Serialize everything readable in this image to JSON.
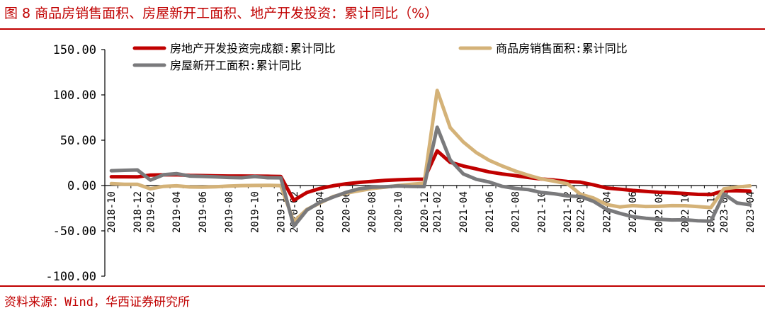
{
  "title": "图 8  商品房销售面积、房屋新开工面积、地产开发投资：累计同比（%）",
  "source": "资料来源：Wind，华西证券研究所",
  "colors": {
    "red": "#c00000",
    "tan": "#d4b278",
    "gray": "#7a7a7c",
    "text": "#c00000"
  },
  "chart_data": {
    "type": "line",
    "x": [
      "2018-10",
      "2018-11",
      "2018-12",
      "2019-02",
      "2019-03",
      "2019-04",
      "2019-05",
      "2019-06",
      "2019-07",
      "2019-08",
      "2019-09",
      "2019-10",
      "2019-11",
      "2019-12",
      "2020-02",
      "2020-03",
      "2020-04",
      "2020-05",
      "2020-06",
      "2020-07",
      "2020-08",
      "2020-09",
      "2020-10",
      "2020-11",
      "2020-12",
      "2021-02",
      "2021-03",
      "2021-04",
      "2021-05",
      "2021-06",
      "2021-07",
      "2021-08",
      "2021-09",
      "2021-10",
      "2021-11",
      "2021-12",
      "2022-02",
      "2022-03",
      "2022-04",
      "2022-05",
      "2022-06",
      "2022-07",
      "2022-08",
      "2022-09",
      "2022-10",
      "2022-11",
      "2022-12",
      "2023-02",
      "2023-03",
      "2023-04"
    ],
    "x_tick_labels": [
      "2018-10",
      "2018-12",
      "2019-02",
      "2019-04",
      "2019-06",
      "2019-08",
      "2019-10",
      "2019-12",
      "2020-02",
      "2020-04",
      "2020-06",
      "2020-08",
      "2020-10",
      "2020-12",
      "2021-02",
      "2021-04",
      "2021-06",
      "2021-08",
      "2021-10",
      "2021-12",
      "2022-02",
      "2022-04",
      "2022-06",
      "2022-08",
      "2022-10",
      "2022-12",
      "2023-02",
      "2023-04"
    ],
    "y_tick_labels": [
      "150.00",
      "100.00",
      "50.00",
      "0.00",
      "-50.00",
      "-100.00"
    ],
    "ylim": [
      -100,
      150
    ],
    "series": [
      {
        "name": "房地产开发投资完成额:累计同比",
        "color": "#c00000",
        "values": [
          9.7,
          9.7,
          9.5,
          11.6,
          11.8,
          11.9,
          11.2,
          10.9,
          10.6,
          10.5,
          10.5,
          10.3,
          10.2,
          9.9,
          -16.3,
          -7.7,
          -3.3,
          -0.3,
          1.9,
          3.4,
          4.6,
          5.6,
          6.3,
          6.8,
          7.0,
          38.3,
          25.6,
          21.6,
          18.3,
          15.0,
          12.7,
          10.9,
          8.8,
          7.2,
          6.0,
          4.4,
          3.7,
          0.7,
          -2.7,
          -4.0,
          -5.4,
          -6.4,
          -7.4,
          -8.0,
          -8.8,
          -9.8,
          -10.0,
          -5.7,
          -5.8,
          -6.2
        ]
      },
      {
        "name": "商品房销售面积:累计同比",
        "color": "#d4b278",
        "values": [
          2.2,
          1.4,
          1.3,
          -3.6,
          -0.9,
          -0.3,
          -1.6,
          -1.8,
          -1.3,
          -0.6,
          -0.1,
          0.1,
          0.2,
          -0.1,
          -39.9,
          -26.3,
          -19.3,
          -12.3,
          -8.4,
          -5.8,
          -3.3,
          -1.8,
          0.0,
          1.3,
          2.6,
          104.9,
          63.8,
          48.1,
          36.3,
          27.7,
          21.5,
          15.9,
          11.3,
          7.3,
          4.8,
          1.9,
          -9.6,
          -13.8,
          -20.9,
          -23.6,
          -22.2,
          -23.1,
          -23.0,
          -22.2,
          -22.3,
          -23.3,
          -24.3,
          -3.6,
          -1.8,
          -0.4
        ]
      },
      {
        "name": "房屋新开工面积:累计同比",
        "color": "#7a7a7c",
        "values": [
          16.3,
          16.8,
          17.2,
          6.0,
          11.9,
          13.1,
          10.5,
          10.1,
          9.5,
          8.9,
          8.6,
          10.0,
          8.6,
          8.5,
          -44.9,
          -27.2,
          -18.4,
          -12.8,
          -7.6,
          -3.6,
          -1.9,
          -1.4,
          -0.5,
          -1.0,
          -1.2,
          64.3,
          28.2,
          12.8,
          6.9,
          3.8,
          -0.9,
          -3.2,
          -4.5,
          -7.7,
          -9.1,
          -11.4,
          -12.2,
          -17.5,
          -26.3,
          -30.6,
          -34.4,
          -36.1,
          -37.2,
          -38.0,
          -37.8,
          -38.9,
          -39.4,
          -9.4,
          -19.2,
          -21.2
        ]
      }
    ],
    "legend": "top",
    "grid": false
  }
}
